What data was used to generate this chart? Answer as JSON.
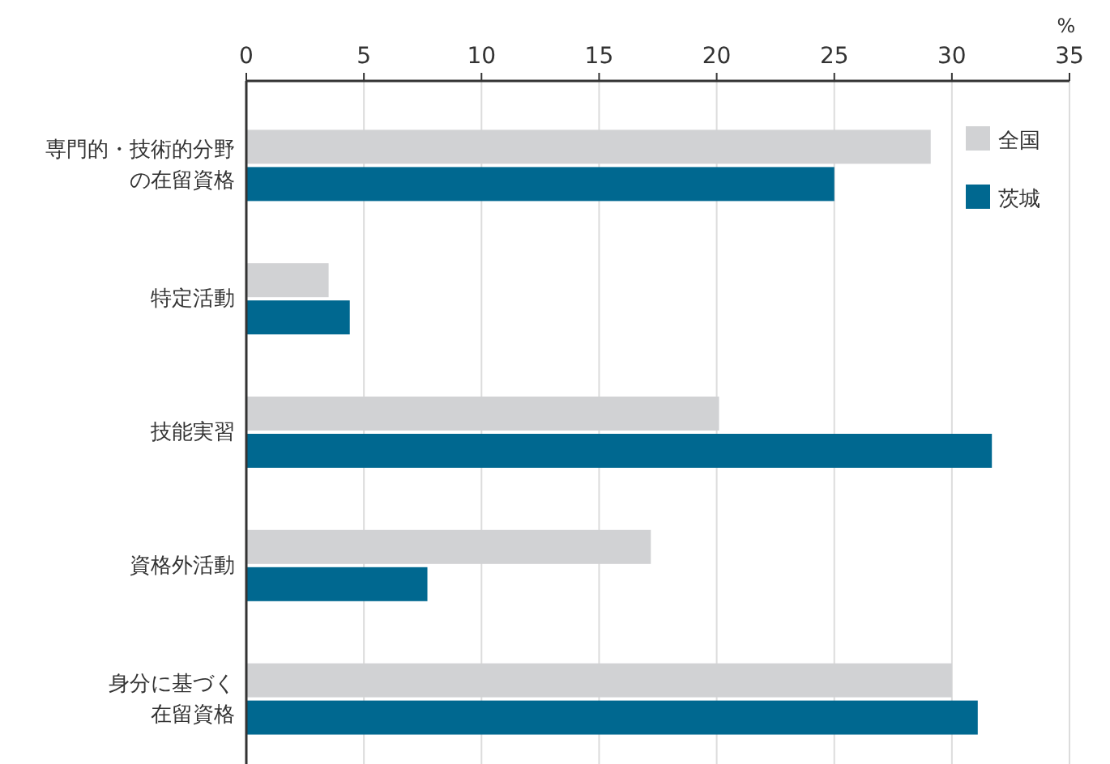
{
  "chart_data": {
    "type": "bar",
    "orientation": "horizontal",
    "xlabel": "%",
    "categories": [
      "専門的・技術的分野の在留資格",
      "特定活動",
      "技能実習",
      "資格外活動",
      "身分に基づく在留資格"
    ],
    "series": [
      {
        "name": "全国",
        "color": "#d1d2d4",
        "values": [
          29.1,
          3.5,
          20.1,
          17.2,
          30.0
        ]
      },
      {
        "name": "茨城",
        "color": "#006890",
        "values": [
          25.0,
          4.4,
          31.7,
          7.7,
          31.1
        ]
      }
    ],
    "xlim": [
      0,
      35
    ],
    "xticks": [
      0,
      5,
      10,
      15,
      20,
      25,
      30,
      35
    ],
    "grid": "x",
    "legend": "top right"
  }
}
